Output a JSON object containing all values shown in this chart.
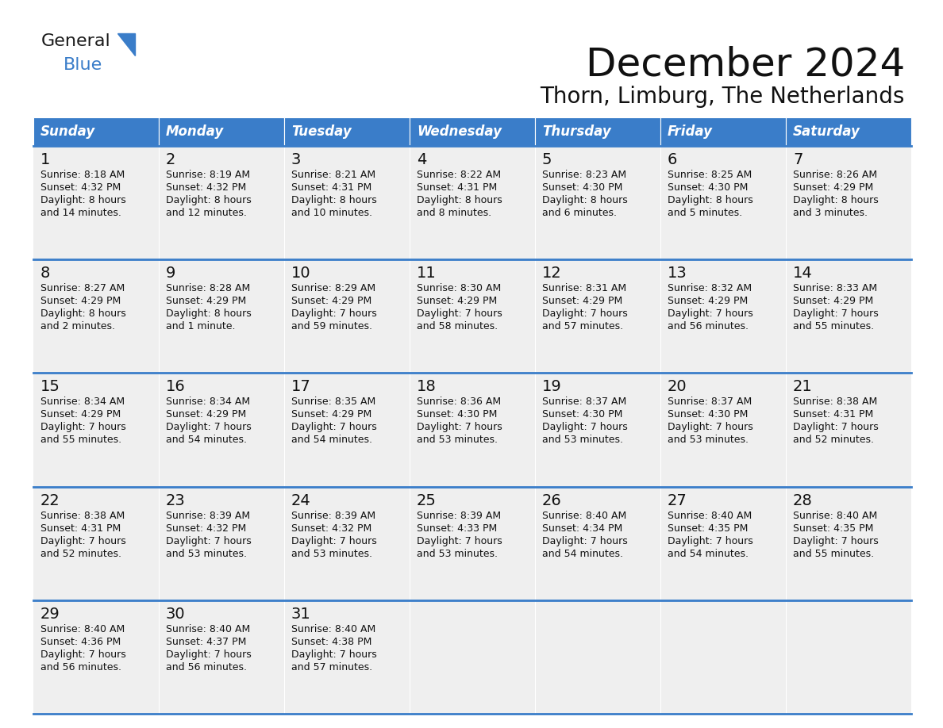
{
  "title": "December 2024",
  "subtitle": "Thorn, Limburg, The Netherlands",
  "header_color": "#3A7DC9",
  "header_text_color": "#FFFFFF",
  "cell_bg_color": "#EFEFEF",
  "border_color": "#3A7DC9",
  "day_names": [
    "Sunday",
    "Monday",
    "Tuesday",
    "Wednesday",
    "Thursday",
    "Friday",
    "Saturday"
  ],
  "weeks": [
    [
      {
        "day": 1,
        "sunrise": "8:18 AM",
        "sunset": "4:32 PM",
        "daylight_h": "8 hours",
        "daylight_m": "and 14 minutes."
      },
      {
        "day": 2,
        "sunrise": "8:19 AM",
        "sunset": "4:32 PM",
        "daylight_h": "8 hours",
        "daylight_m": "and 12 minutes."
      },
      {
        "day": 3,
        "sunrise": "8:21 AM",
        "sunset": "4:31 PM",
        "daylight_h": "8 hours",
        "daylight_m": "and 10 minutes."
      },
      {
        "day": 4,
        "sunrise": "8:22 AM",
        "sunset": "4:31 PM",
        "daylight_h": "8 hours",
        "daylight_m": "and 8 minutes."
      },
      {
        "day": 5,
        "sunrise": "8:23 AM",
        "sunset": "4:30 PM",
        "daylight_h": "8 hours",
        "daylight_m": "and 6 minutes."
      },
      {
        "day": 6,
        "sunrise": "8:25 AM",
        "sunset": "4:30 PM",
        "daylight_h": "8 hours",
        "daylight_m": "and 5 minutes."
      },
      {
        "day": 7,
        "sunrise": "8:26 AM",
        "sunset": "4:29 PM",
        "daylight_h": "8 hours",
        "daylight_m": "and 3 minutes."
      }
    ],
    [
      {
        "day": 8,
        "sunrise": "8:27 AM",
        "sunset": "4:29 PM",
        "daylight_h": "8 hours",
        "daylight_m": "and 2 minutes."
      },
      {
        "day": 9,
        "sunrise": "8:28 AM",
        "sunset": "4:29 PM",
        "daylight_h": "8 hours",
        "daylight_m": "and 1 minute."
      },
      {
        "day": 10,
        "sunrise": "8:29 AM",
        "sunset": "4:29 PM",
        "daylight_h": "7 hours",
        "daylight_m": "and 59 minutes."
      },
      {
        "day": 11,
        "sunrise": "8:30 AM",
        "sunset": "4:29 PM",
        "daylight_h": "7 hours",
        "daylight_m": "and 58 minutes."
      },
      {
        "day": 12,
        "sunrise": "8:31 AM",
        "sunset": "4:29 PM",
        "daylight_h": "7 hours",
        "daylight_m": "and 57 minutes."
      },
      {
        "day": 13,
        "sunrise": "8:32 AM",
        "sunset": "4:29 PM",
        "daylight_h": "7 hours",
        "daylight_m": "and 56 minutes."
      },
      {
        "day": 14,
        "sunrise": "8:33 AM",
        "sunset": "4:29 PM",
        "daylight_h": "7 hours",
        "daylight_m": "and 55 minutes."
      }
    ],
    [
      {
        "day": 15,
        "sunrise": "8:34 AM",
        "sunset": "4:29 PM",
        "daylight_h": "7 hours",
        "daylight_m": "and 55 minutes."
      },
      {
        "day": 16,
        "sunrise": "8:34 AM",
        "sunset": "4:29 PM",
        "daylight_h": "7 hours",
        "daylight_m": "and 54 minutes."
      },
      {
        "day": 17,
        "sunrise": "8:35 AM",
        "sunset": "4:29 PM",
        "daylight_h": "7 hours",
        "daylight_m": "and 54 minutes."
      },
      {
        "day": 18,
        "sunrise": "8:36 AM",
        "sunset": "4:30 PM",
        "daylight_h": "7 hours",
        "daylight_m": "and 53 minutes."
      },
      {
        "day": 19,
        "sunrise": "8:37 AM",
        "sunset": "4:30 PM",
        "daylight_h": "7 hours",
        "daylight_m": "and 53 minutes."
      },
      {
        "day": 20,
        "sunrise": "8:37 AM",
        "sunset": "4:30 PM",
        "daylight_h": "7 hours",
        "daylight_m": "and 53 minutes."
      },
      {
        "day": 21,
        "sunrise": "8:38 AM",
        "sunset": "4:31 PM",
        "daylight_h": "7 hours",
        "daylight_m": "and 52 minutes."
      }
    ],
    [
      {
        "day": 22,
        "sunrise": "8:38 AM",
        "sunset": "4:31 PM",
        "daylight_h": "7 hours",
        "daylight_m": "and 52 minutes."
      },
      {
        "day": 23,
        "sunrise": "8:39 AM",
        "sunset": "4:32 PM",
        "daylight_h": "7 hours",
        "daylight_m": "and 53 minutes."
      },
      {
        "day": 24,
        "sunrise": "8:39 AM",
        "sunset": "4:32 PM",
        "daylight_h": "7 hours",
        "daylight_m": "and 53 minutes."
      },
      {
        "day": 25,
        "sunrise": "8:39 AM",
        "sunset": "4:33 PM",
        "daylight_h": "7 hours",
        "daylight_m": "and 53 minutes."
      },
      {
        "day": 26,
        "sunrise": "8:40 AM",
        "sunset": "4:34 PM",
        "daylight_h": "7 hours",
        "daylight_m": "and 54 minutes."
      },
      {
        "day": 27,
        "sunrise": "8:40 AM",
        "sunset": "4:35 PM",
        "daylight_h": "7 hours",
        "daylight_m": "and 54 minutes."
      },
      {
        "day": 28,
        "sunrise": "8:40 AM",
        "sunset": "4:35 PM",
        "daylight_h": "7 hours",
        "daylight_m": "and 55 minutes."
      }
    ],
    [
      {
        "day": 29,
        "sunrise": "8:40 AM",
        "sunset": "4:36 PM",
        "daylight_h": "7 hours",
        "daylight_m": "and 56 minutes."
      },
      {
        "day": 30,
        "sunrise": "8:40 AM",
        "sunset": "4:37 PM",
        "daylight_h": "7 hours",
        "daylight_m": "and 56 minutes."
      },
      {
        "day": 31,
        "sunrise": "8:40 AM",
        "sunset": "4:38 PM",
        "daylight_h": "7 hours",
        "daylight_m": "and 57 minutes."
      },
      null,
      null,
      null,
      null
    ]
  ],
  "logo_color_general": "#1a1a1a",
  "logo_color_blue": "#3A7DC9",
  "title_fontsize": 36,
  "subtitle_fontsize": 20,
  "day_header_fontsize": 12,
  "day_num_fontsize": 14,
  "cell_text_fontsize": 9
}
